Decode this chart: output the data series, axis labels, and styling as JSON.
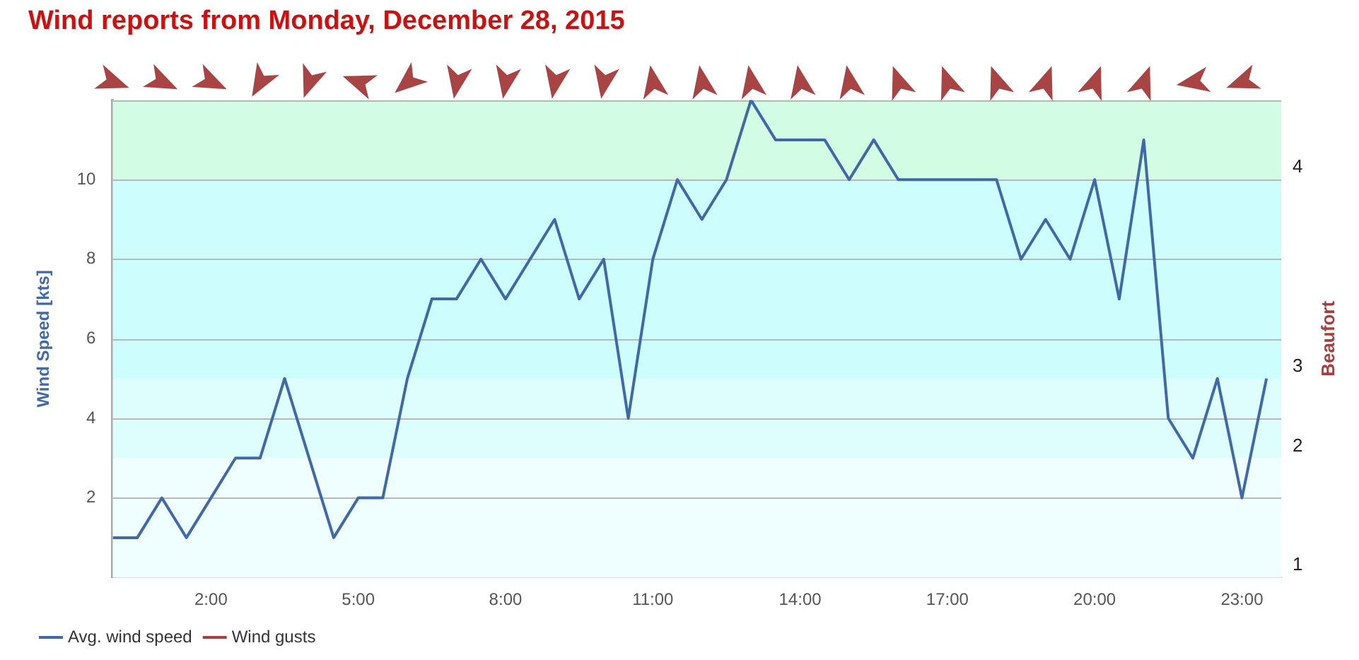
{
  "chart_data": {
    "type": "line",
    "title": "Wind reports from Monday, December 28, 2015",
    "ylabel": "Wind Speed [kts]",
    "y2label": "Beaufort",
    "x": [
      0,
      0.5,
      1,
      1.5,
      2,
      2.5,
      3,
      3.5,
      4,
      4.5,
      5,
      5.5,
      6,
      6.5,
      7,
      7.5,
      8,
      8.5,
      9,
      9.5,
      10,
      10.5,
      11,
      11.5,
      12,
      12.5,
      13,
      13.5,
      14,
      14.5,
      15,
      15.5,
      16,
      16.5,
      17,
      17.5,
      18,
      18.5,
      19,
      19.5,
      20,
      20.5,
      21,
      21.5,
      22,
      22.5,
      23,
      23.5
    ],
    "series": [
      {
        "name": "Avg. wind speed",
        "color": "#4169a8",
        "values": [
          1,
          1,
          2,
          1,
          2,
          3,
          3,
          5,
          3,
          1,
          2,
          2,
          5,
          7,
          7,
          8,
          7,
          8,
          9,
          7,
          8,
          4,
          8,
          10,
          9,
          10,
          12,
          11,
          11,
          11,
          10,
          11,
          10,
          10,
          10,
          10,
          10,
          8,
          9,
          8,
          10,
          7,
          11,
          4,
          3,
          5,
          2,
          5
        ]
      },
      {
        "name": "Wind gusts",
        "color": "#aa3d3d",
        "values": [
          null,
          null,
          null,
          null,
          null,
          null,
          null,
          null,
          null,
          null,
          null,
          null,
          null,
          null,
          null,
          null,
          null,
          null,
          null,
          null,
          null,
          null,
          null,
          null,
          null,
          null,
          null,
          null,
          null,
          null,
          null,
          null,
          null,
          null,
          null,
          null,
          null,
          null,
          null,
          null,
          null,
          null,
          null,
          null,
          null,
          null,
          null,
          null
        ]
      }
    ],
    "xlim": [
      0,
      23.8
    ],
    "xticks": [
      {
        "value": 2,
        "label": "2:00"
      },
      {
        "value": 5,
        "label": "5:00"
      },
      {
        "value": 8,
        "label": "8:00"
      },
      {
        "value": 11,
        "label": "11:00"
      },
      {
        "value": 14,
        "label": "14:00"
      },
      {
        "value": 17,
        "label": "17:00"
      },
      {
        "value": 20,
        "label": "20:00"
      },
      {
        "value": 23,
        "label": "23:00"
      }
    ],
    "ylim": [
      0,
      12
    ],
    "yticks": [
      2,
      4,
      6,
      8,
      10
    ],
    "bands": [
      {
        "axis": "y",
        "from": 0,
        "to": 3,
        "label": "1",
        "color": "#effefe"
      },
      {
        "axis": "y",
        "from": 3,
        "to": 5,
        "label": "2",
        "color": "#defefe"
      },
      {
        "axis": "y",
        "from": 5,
        "to": 10,
        "label": "3",
        "color": "#cdfefd"
      },
      {
        "axis": "y",
        "from": 10,
        "to": 12,
        "label": "4",
        "color": "#d3fce5"
      }
    ],
    "grid": "y",
    "legend": "bottom left",
    "marker": "none",
    "line_style": "solid"
  }
}
